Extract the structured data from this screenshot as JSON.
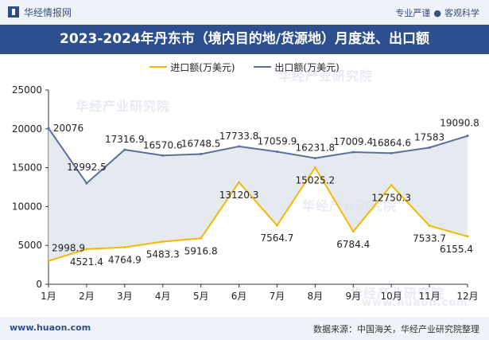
{
  "header": {
    "brand_name": "华经情报网",
    "tagline_left": "专业严谨",
    "tagline_right": "客观科学"
  },
  "title": "2023-2024年丹东市（境内目的地/货源地）月度进、出口额",
  "watermark": "华经产业研究院",
  "watermark_url": "www.huaon.com",
  "footer": {
    "url": "www.huaon.com",
    "source": "数据来源：中国海关，华经产业研究院整理"
  },
  "colors": {
    "import": "#f5b800",
    "export": "#5b6f9a",
    "title_bg": "#2e4f8e",
    "area_fill": "#dfe3ec"
  },
  "chart_data": {
    "type": "line",
    "categories": [
      "1月",
      "2月",
      "3月",
      "4月",
      "5月",
      "6月",
      "7月",
      "8月",
      "9月",
      "10月",
      "11月",
      "12月"
    ],
    "series": [
      {
        "name": "进口额(万美元)",
        "values": [
          2998.9,
          4521.4,
          4764.9,
          5483.3,
          5916.8,
          13120.3,
          7564.7,
          15025.2,
          6784.4,
          12750.3,
          7533.7,
          6155.4
        ]
      },
      {
        "name": "出口额(万美元)",
        "values": [
          20076,
          12992.5,
          17316.9,
          16570.6,
          16748.5,
          17733.8,
          17059.9,
          16231.8,
          17009.4,
          16864.6,
          17583,
          19090.8
        ]
      }
    ],
    "y_ticks": [
      "0",
      "5000",
      "10000",
      "15000",
      "20000",
      "25000"
    ],
    "ylim": [
      0,
      25000
    ],
    "grid": false,
    "legend_position": "top-center"
  }
}
